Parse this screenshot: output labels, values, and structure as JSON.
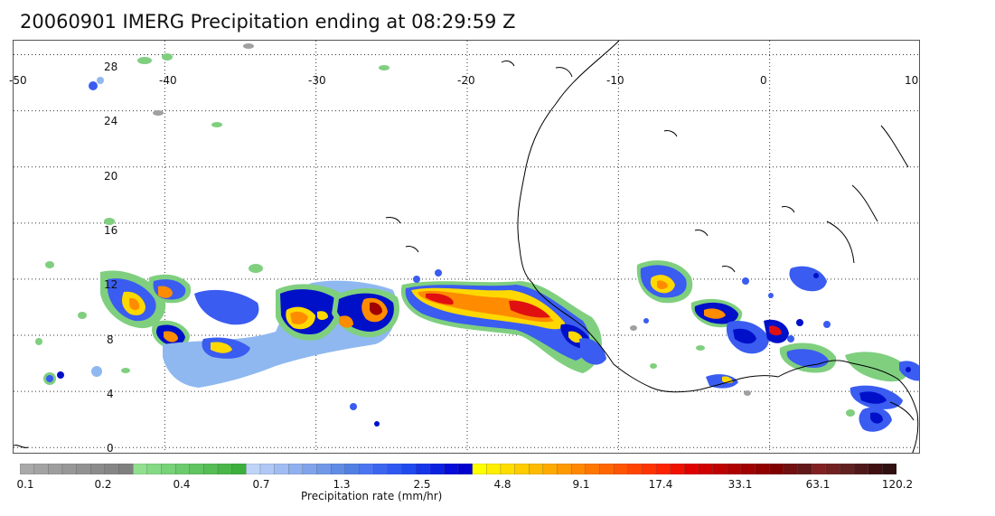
{
  "title": "20060901 IMERG Precipitation ending at 08:29:59 Z",
  "map": {
    "lon_labels": [
      "-50",
      "-40",
      "-30",
      "-20",
      "-10",
      "0",
      "10"
    ],
    "lat_labels": [
      "28",
      "24",
      "20",
      "16",
      "12",
      "8",
      "4",
      "0"
    ],
    "lon_values": [
      -50,
      -40,
      -30,
      -20,
      -10,
      0,
      10
    ],
    "lat_values": [
      28,
      24,
      20,
      16,
      12,
      8,
      4,
      0
    ],
    "lon_range": [
      -50,
      10
    ],
    "lat_range": [
      -0.5,
      29
    ],
    "grid": "dotted"
  },
  "colorbar": {
    "label": "Precipitation rate (mm/hr)",
    "tick_labels": [
      "0.1",
      "0.2",
      "0.4",
      "0.7",
      "1.3",
      "2.5",
      "4.8",
      "9.1",
      "17.4",
      "33.1",
      "63.1",
      "120.2"
    ],
    "colors": [
      "#a9a9a9",
      "#a3a3a3",
      "#9d9d9d",
      "#979797",
      "#919191",
      "#8b8b8b",
      "#858585",
      "#7f7f7f",
      "#90e090",
      "#84d984",
      "#78d278",
      "#6ccb6c",
      "#60c460",
      "#54bd54",
      "#48b648",
      "#3caf3c",
      "#c0d4f8",
      "#b0c8f5",
      "#a0bcf2",
      "#90b0ef",
      "#80a4ec",
      "#7098e9",
      "#608ce6",
      "#5080e3",
      "#4a74f0",
      "#3c66f0",
      "#2e58f0",
      "#204af0",
      "#1634e8",
      "#0c20e0",
      "#060cd8",
      "#0000d0",
      "#ffff00",
      "#ffee00",
      "#ffdd00",
      "#ffcc00",
      "#ffbb00",
      "#ffaa00",
      "#ff9900",
      "#ff8800",
      "#ff7700",
      "#ff6600",
      "#ff5500",
      "#ff4400",
      "#ff3300",
      "#ff2200",
      "#f01000",
      "#e00000",
      "#d00000",
      "#c00000",
      "#b00000",
      "#a00000",
      "#900000",
      "#800000",
      "#701010",
      "#601818",
      "#802020",
      "#702020",
      "#602020",
      "#501818",
      "#401010",
      "#301010"
    ]
  },
  "precip_palette": {
    "light_gray": "#a0a0a0",
    "green": "#7fcf7f",
    "light_blue": "#8fb8f0",
    "blue": "#3a5cf0",
    "dark_blue": "#0010c8",
    "yellow": "#ffd800",
    "orange": "#ff8c00",
    "red": "#e01010",
    "dark_red": "#a00000"
  }
}
